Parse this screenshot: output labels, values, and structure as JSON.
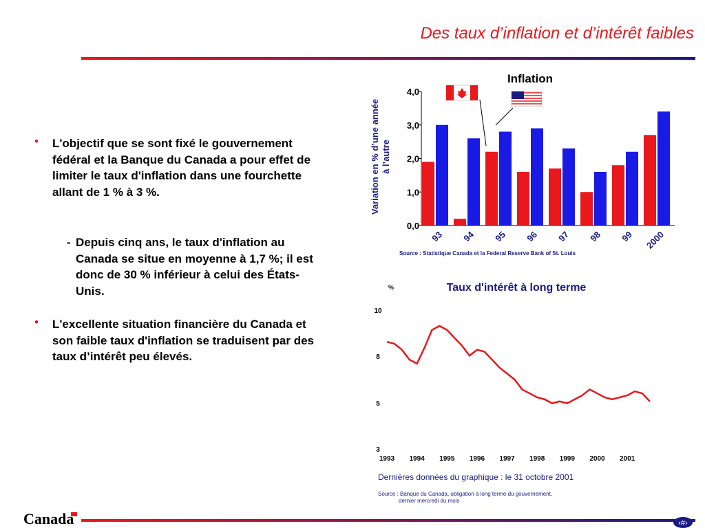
{
  "header": {
    "title": "Des taux d’inflation et d’intérêt faibles"
  },
  "bullets": [
    {
      "text": "L'objectif que se sont fixé le gouvernement fédéral et la Banque du Canada a pour effet de limiter le taux d'inflation dans une fourchette allant de 1 % à 3 %.",
      "sub": "Depuis cinq ans, le taux d'inflation au Canada se situe en moyenne à 1,7 %; il est donc de 30 % inférieur à celui des États-Unis."
    },
    {
      "text": "L'excellente situation financière du Canada et son faible taux d'inflation se traduisent par des taux d’intérêt peu élevés."
    }
  ],
  "chart_data": [
    {
      "type": "bar",
      "title": "Inflation",
      "y_label": [
        "Variation en % d’une année",
        "à l’autre"
      ],
      "source": "Source : Statistique Canada et la Federal Reserve Bank of St. Louis",
      "categories": [
        "93",
        "94",
        "95",
        "96",
        "97",
        "98",
        "99",
        "2000"
      ],
      "series": [
        {
          "color": "#e8181c",
          "values": [
            1.9,
            0.2,
            2.2,
            1.6,
            1.7,
            1.0,
            1.8,
            2.7
          ]
        },
        {
          "color": "#1a1ae6",
          "values": [
            3.0,
            2.6,
            2.8,
            2.9,
            2.3,
            1.6,
            2.2,
            3.4
          ]
        }
      ],
      "ylim": [
        0,
        4
      ],
      "yticks": [
        {
          "value": 0,
          "label": "0,0"
        },
        {
          "value": 1,
          "label": "1,0"
        },
        {
          "value": 2,
          "label": "2,0"
        },
        {
          "value": 3,
          "label": "3,0"
        },
        {
          "value": 4,
          "label": "4,0"
        }
      ]
    },
    {
      "type": "line",
      "title": "Taux d'intérêt à long terme",
      "y_label": "%",
      "note": "Dernières données du graphique : le 31 octobre 2001",
      "source": [
        "Source : Banque du Canada, obligation à long terme du gouvernement,",
        "dernier mercredi du mois"
      ],
      "x": [
        1993,
        1993.25,
        1993.5,
        1993.75,
        1994,
        1994.25,
        1994.5,
        1994.75,
        1995,
        1995.25,
        1995.5,
        1995.75,
        1996,
        1996.25,
        1996.5,
        1996.75,
        1997,
        1997.25,
        1997.5,
        1997.75,
        1998,
        1998.25,
        1998.5,
        1998.75,
        1999,
        1999.25,
        1999.5,
        1999.75,
        2000,
        2000.25,
        2000.5,
        2000.75,
        2001,
        2001.25,
        2001.5,
        2001.75
      ],
      "series": [
        {
          "color": "#e8181c",
          "values": [
            8.4,
            8.3,
            8.0,
            7.5,
            7.3,
            8.1,
            9.0,
            9.2,
            9.0,
            8.6,
            8.2,
            7.7,
            8.0,
            7.9,
            7.5,
            7.1,
            6.8,
            6.5,
            6.0,
            5.8,
            5.6,
            5.5,
            5.3,
            5.4,
            5.3,
            5.5,
            5.7,
            6.0,
            5.8,
            5.6,
            5.5,
            5.6,
            5.7,
            5.9,
            5.8,
            5.4
          ]
        }
      ],
      "xlim": [
        1993,
        2001.8
      ],
      "xticks": [
        1993,
        1994,
        1995,
        1996,
        1997,
        1998,
        1999,
        2000,
        2001
      ],
      "ylim": [
        3,
        10
      ],
      "yticks": [
        {
          "value": 10,
          "label": "10"
        },
        {
          "value": 7.67,
          "label": "8"
        },
        {
          "value": 5.33,
          "label": "5"
        },
        {
          "value": 3,
          "label": "3"
        }
      ]
    }
  ],
  "footer": {
    "logo": "Canada",
    "page": "‹#›"
  }
}
